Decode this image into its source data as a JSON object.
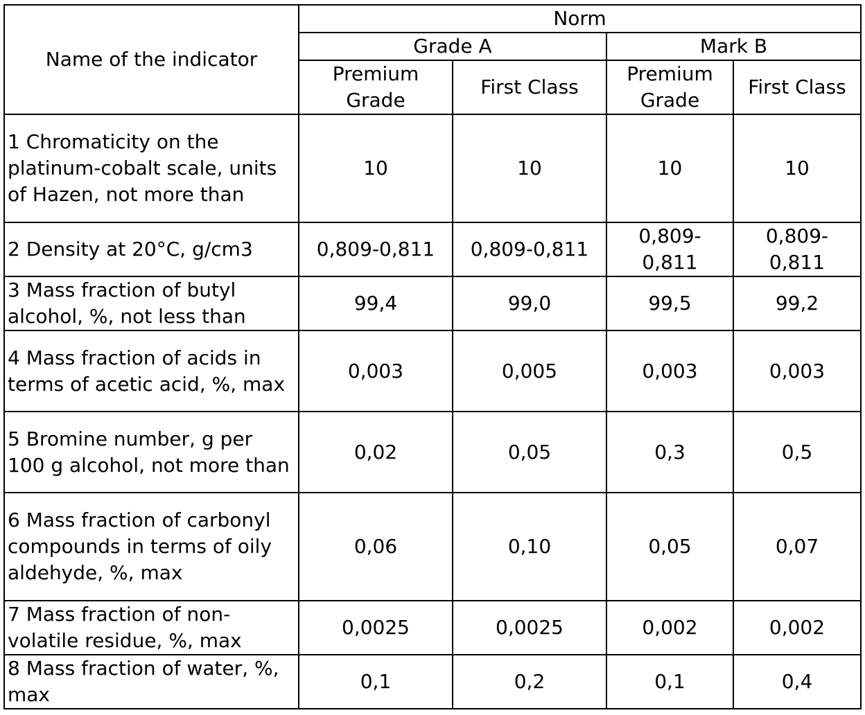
{
  "header": {
    "indicator_label": "Name of the indicator",
    "norm_label": "Norm",
    "group_a": "Grade A",
    "group_b": "Mark B",
    "sub_a1": "Premium Grade",
    "sub_a2": "First Class",
    "sub_b1": "Premium Grade",
    "sub_b2": "First Class"
  },
  "rows": [
    {
      "indicator": "1 Chromaticity on the platinum-cobalt scale, units of Hazen, not more than",
      "values": [
        "10",
        "10",
        "10",
        "10"
      ]
    },
    {
      "indicator": "2 Density at 20°C, g/cm3",
      "values": [
        "0,809-0,811",
        "0,809-0,811",
        "0,809-0,811",
        "0,809-0,811"
      ]
    },
    {
      "indicator": "3 Mass fraction of butyl alcohol, %, not less than",
      "values": [
        "99,4",
        "99,0",
        "99,5",
        "99,2"
      ]
    },
    {
      "indicator": "4 Mass fraction of acids in terms of acetic acid, %, max",
      "values": [
        "0,003",
        "0,005",
        "0,003",
        "0,003"
      ]
    },
    {
      "indicator": "5 Bromine number, g per 100 g alcohol, not more than",
      "values": [
        "0,02",
        "0,05",
        "0,3",
        "0,5"
      ]
    },
    {
      "indicator": "6 Mass fraction of carbonyl compounds in terms of oily aldehyde, %, max",
      "values": [
        "0,06",
        "0,10",
        "0,05",
        "0,07"
      ]
    },
    {
      "indicator": "7 Mass fraction of non-volatile residue, %, max",
      "values": [
        "0,0025",
        "0,0025",
        "0,002",
        "0,002"
      ]
    },
    {
      "indicator": "8 Mass fraction of water, %, max",
      "values": [
        "0,1",
        "0,2",
        "0,1",
        "0,4"
      ]
    }
  ]
}
